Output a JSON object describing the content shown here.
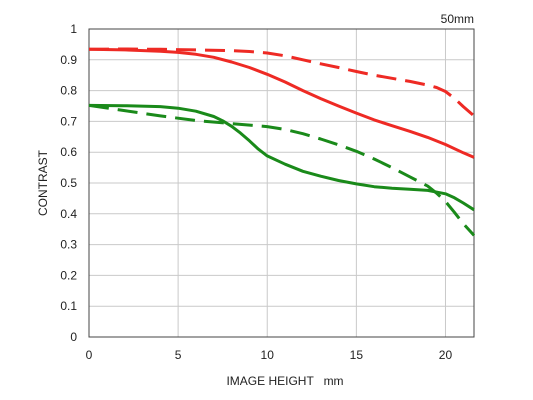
{
  "chart_data": {
    "type": "line",
    "title": "50mm",
    "xlabel": "IMAGE HEIGHT   mm",
    "ylabel": "CONTRAST",
    "xlim": [
      0,
      21.6
    ],
    "ylim": [
      0,
      1
    ],
    "xticks": [
      0,
      5,
      10,
      15,
      20
    ],
    "yticks": [
      0,
      0.1,
      0.2,
      0.3,
      0.4,
      0.5,
      0.6,
      0.7,
      0.8,
      0.9,
      1
    ],
    "ytick_labels": [
      "0",
      "0.1",
      "0.2",
      "0.3",
      "0.4",
      "0.5",
      "0.6",
      "0.7",
      "0.8",
      "0.9",
      "1"
    ],
    "grid": true,
    "series": [
      {
        "color": "#ee2a24",
        "dash": "solid",
        "x": [
          0,
          2,
          4,
          5,
          6,
          7,
          8,
          9,
          10,
          11,
          12,
          13,
          14,
          15,
          16,
          17,
          18,
          19,
          20,
          21,
          21.6
        ],
        "y": [
          0.934,
          0.932,
          0.928,
          0.924,
          0.918,
          0.908,
          0.893,
          0.875,
          0.853,
          0.828,
          0.8,
          0.774,
          0.75,
          0.727,
          0.705,
          0.686,
          0.668,
          0.648,
          0.625,
          0.598,
          0.583
        ]
      },
      {
        "color": "#ee2a24",
        "dash": "dashed",
        "x": [
          0,
          2,
          4,
          6,
          8,
          9,
          10,
          11,
          12,
          13,
          14,
          15,
          16,
          17,
          18,
          19,
          19.5,
          20,
          20.5,
          21,
          21.6
        ],
        "y": [
          0.934,
          0.935,
          0.934,
          0.932,
          0.93,
          0.927,
          0.922,
          0.913,
          0.9,
          0.887,
          0.875,
          0.862,
          0.85,
          0.84,
          0.83,
          0.818,
          0.81,
          0.797,
          0.775,
          0.748,
          0.718
        ]
      },
      {
        "color": "#1a8a1a",
        "dash": "solid",
        "x": [
          0,
          2,
          4,
          5,
          6,
          7,
          7.5,
          8,
          8.5,
          9,
          9.5,
          10,
          11,
          12,
          13,
          14,
          15,
          16,
          17,
          18,
          19,
          20,
          20.5,
          21,
          21.6
        ],
        "y": [
          0.752,
          0.751,
          0.748,
          0.743,
          0.733,
          0.716,
          0.702,
          0.684,
          0.662,
          0.637,
          0.61,
          0.588,
          0.561,
          0.538,
          0.522,
          0.508,
          0.497,
          0.488,
          0.483,
          0.48,
          0.476,
          0.465,
          0.452,
          0.435,
          0.413
        ]
      },
      {
        "color": "#1a8a1a",
        "dash": "dashed",
        "x": [
          0,
          2,
          4,
          6,
          8,
          10,
          11,
          12,
          13,
          14,
          15,
          16,
          17,
          18,
          19,
          19.5,
          20,
          20.5,
          21,
          21.6
        ],
        "y": [
          0.752,
          0.735,
          0.718,
          0.703,
          0.693,
          0.683,
          0.674,
          0.66,
          0.643,
          0.624,
          0.603,
          0.578,
          0.55,
          0.52,
          0.49,
          0.467,
          0.44,
          0.405,
          0.368,
          0.33
        ]
      }
    ]
  }
}
